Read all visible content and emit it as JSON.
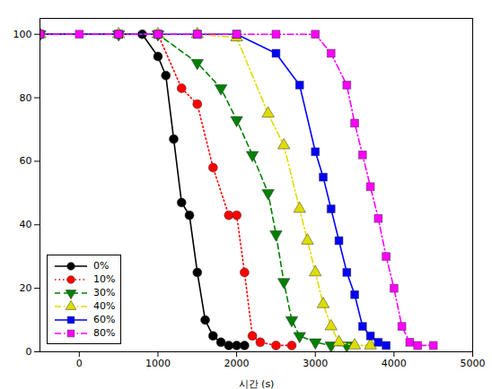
{
  "chart_data": {
    "type": "line",
    "xlabel": "시간 (s)",
    "series": [
      {
        "name": "0%",
        "color": "black",
        "line_style": "solid",
        "marker": "circle",
        "x": [
          -500,
          500,
          800,
          1000,
          1100,
          1200,
          1300,
          1400,
          1500,
          1600,
          1700,
          1800,
          1900,
          2000,
          2100
        ],
        "values": [
          100,
          100,
          100,
          93,
          87,
          67,
          47,
          43,
          25,
          10,
          5,
          3,
          2,
          2,
          2
        ]
      },
      {
        "name": "10%",
        "color": "red",
        "line_style": "dotted",
        "marker": "circle",
        "x": [
          -500,
          500,
          1000,
          1300,
          1500,
          1700,
          1900,
          2000,
          2100,
          2200,
          2300,
          2500,
          2700
        ],
        "values": [
          100,
          100,
          100,
          83,
          78,
          58,
          43,
          43,
          25,
          5,
          3,
          2,
          2
        ]
      },
      {
        "name": "30%",
        "color": "green",
        "line_style": "dashed",
        "marker": "triangle-down",
        "x": [
          -500,
          500,
          1000,
          1500,
          1800,
          2000,
          2200,
          2400,
          2500,
          2600,
          2700,
          2800,
          3000,
          3200,
          3400
        ],
        "values": [
          100,
          100,
          100,
          91,
          83,
          73,
          62,
          50,
          37,
          22,
          10,
          5,
          3,
          2,
          2
        ]
      },
      {
        "name": "40%",
        "color": "#DDDD00",
        "line_style": "dashdot",
        "marker": "triangle-up",
        "x": [
          -500,
          500,
          1000,
          1500,
          2000,
          2400,
          2600,
          2800,
          2900,
          3000,
          3100,
          3200,
          3300,
          3500,
          3700
        ],
        "values": [
          100,
          100,
          100,
          100,
          99,
          75,
          65,
          45,
          35,
          25,
          15,
          8,
          3,
          2,
          2
        ]
      },
      {
        "name": "60%",
        "color": "blue",
        "line_style": "solid",
        "marker": "square",
        "x": [
          -500,
          500,
          1000,
          1500,
          2000,
          2500,
          2800,
          3000,
          3100,
          3200,
          3300,
          3400,
          3500,
          3600,
          3700,
          3800,
          3900
        ],
        "values": [
          100,
          100,
          100,
          100,
          100,
          94,
          84,
          63,
          55,
          45,
          35,
          25,
          18,
          8,
          5,
          3,
          2
        ]
      },
      {
        "name": "80%",
        "color": "magenta",
        "line_style": "dashdot",
        "marker": "square",
        "x": [
          -500,
          0,
          500,
          1000,
          1500,
          2000,
          2500,
          3000,
          3200,
          3400,
          3500,
          3600,
          3700,
          3800,
          3900,
          4000,
          4100,
          4200,
          4300,
          4500
        ],
        "values": [
          100,
          100,
          100,
          100,
          100,
          100,
          100,
          100,
          94,
          84,
          72,
          62,
          52,
          42,
          30,
          20,
          8,
          3,
          2,
          2
        ]
      }
    ],
    "xlim": [
      -500,
      5000
    ],
    "ylim": [
      0,
      105
    ],
    "xticks": [
      0,
      1000,
      2000,
      3000,
      4000,
      5000
    ],
    "yticks": [
      0,
      20,
      40,
      60,
      80,
      100
    ],
    "grid": false,
    "legend": "lower left"
  }
}
